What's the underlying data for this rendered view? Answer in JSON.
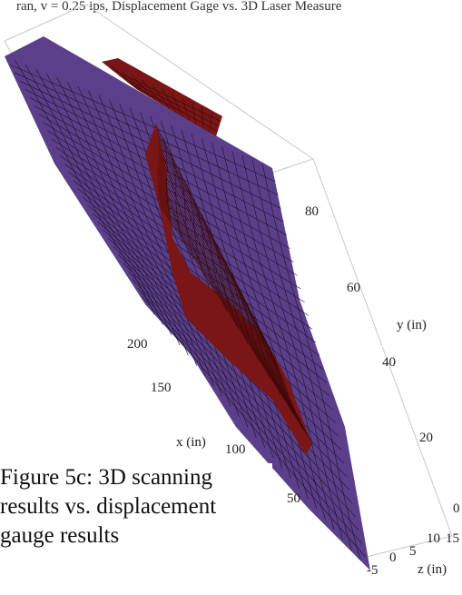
{
  "header_text": "ran, v = 0.25 ips, Displacement Gage vs. 3D Laser Measure",
  "caption_lines": [
    "Figure 5c: 3D scanning",
    "results vs. displacement",
    "gauge results"
  ],
  "colors": {
    "surface_purple": "#5c3f8a",
    "surface_red": "#7a1616",
    "mesh_line": "#1a1428",
    "frame": "#c8c8c8"
  },
  "chart_data": {
    "type": "surface3d",
    "title": "",
    "series": [
      {
        "label": "purple surface",
        "color": "#5c3f8a"
      },
      {
        "label": "dark red surface",
        "color": "#7a1616"
      }
    ],
    "x_axis": {
      "label": "x (in)",
      "ticks": [
        "50",
        "100",
        "150",
        "200"
      ]
    },
    "y_axis": {
      "label": "y (in)",
      "ticks": [
        "0",
        "20",
        "40",
        "60",
        "80"
      ]
    },
    "z_axis": {
      "label": "z (in)",
      "ticks": [
        "-5",
        "0",
        "5",
        "10",
        "15"
      ]
    }
  }
}
